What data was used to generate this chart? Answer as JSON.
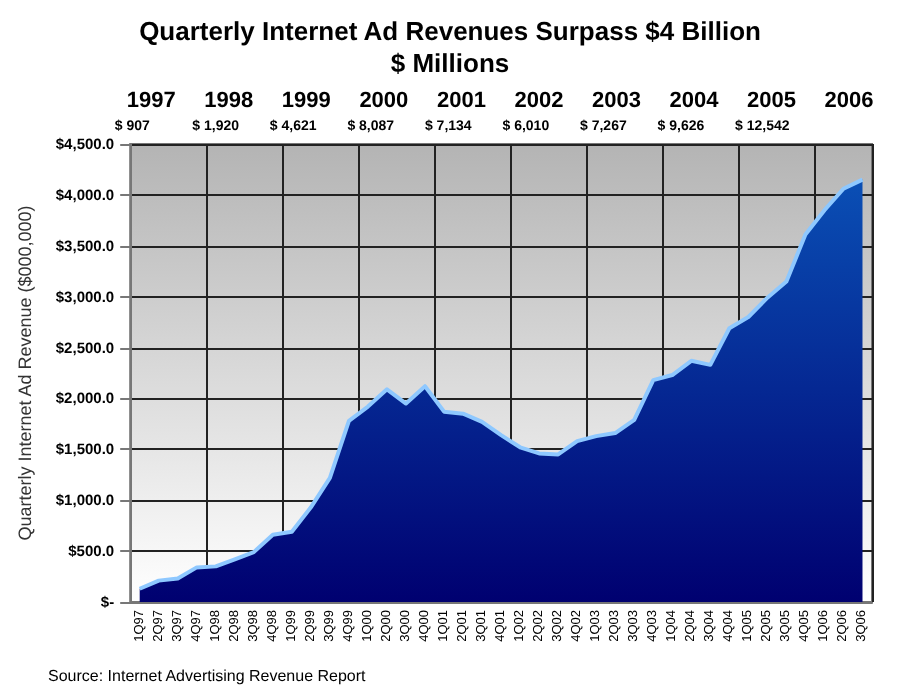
{
  "chart_data": {
    "type": "area",
    "title": "Quarterly Internet Ad Revenues Surpass $4 Billion",
    "subtitle": "$ Millions",
    "ylabel": "Quarterly Internet Ad Revenue ($000,000)",
    "categories": [
      "1Q97",
      "2Q97",
      "3Q97",
      "4Q97",
      "1Q98",
      "2Q98",
      "3Q98",
      "4Q98",
      "1Q99",
      "2Q99",
      "3Q99",
      "4Q99",
      "1Q00",
      "2Q00",
      "3Q00",
      "4Q00",
      "1Q01",
      "2Q01",
      "3Q01",
      "4Q01",
      "1Q02",
      "2Q02",
      "3Q02",
      "4Q02",
      "1Q03",
      "2Q03",
      "3Q03",
      "4Q03",
      "1Q04",
      "2Q04",
      "3Q04",
      "4Q04",
      "1Q05",
      "2Q05",
      "3Q05",
      "4Q05",
      "1Q06",
      "2Q06",
      "3Q06"
    ],
    "values": [
      130,
      210,
      230,
      340,
      350,
      420,
      490,
      660,
      690,
      930,
      1220,
      1780,
      1920,
      2090,
      1950,
      2120,
      1870,
      1850,
      1770,
      1640,
      1520,
      1460,
      1450,
      1580,
      1630,
      1660,
      1790,
      2180,
      2230,
      2370,
      2330,
      2690,
      2800,
      2990,
      3150,
      3610,
      3850,
      4060,
      4150
    ],
    "color": "#0a4fb5",
    "ylim": [
      0,
      4500
    ],
    "yticks": [
      {
        "value": 0,
        "label": "$-"
      },
      {
        "value": 500,
        "label": "$500.0"
      },
      {
        "value": 1000,
        "label": "$1,000.0"
      },
      {
        "value": 1500,
        "label": "$1,500.0"
      },
      {
        "value": 2000,
        "label": "$2,000.0"
      },
      {
        "value": 2500,
        "label": "$2,500.0"
      },
      {
        "value": 3000,
        "label": "$3,000.0"
      },
      {
        "value": 3500,
        "label": "$3,500.0"
      },
      {
        "value": 4000,
        "label": "$4,000.0"
      },
      {
        "value": 4500,
        "label": "$4,500.0"
      }
    ],
    "grid": true,
    "annotations": [
      "1997",
      "1998",
      "1999",
      "2000",
      "2001",
      "2002",
      "2003",
      "2004",
      "2005",
      "2006",
      "$ 907",
      "$ 1,920",
      "$ 4,621",
      "$ 8,087",
      "$ 7,134",
      "$ 6,010",
      "$ 7,267",
      "$ 9,626",
      "$ 12,542",
      "Source: Internet Advertising Revenue Report"
    ]
  }
}
